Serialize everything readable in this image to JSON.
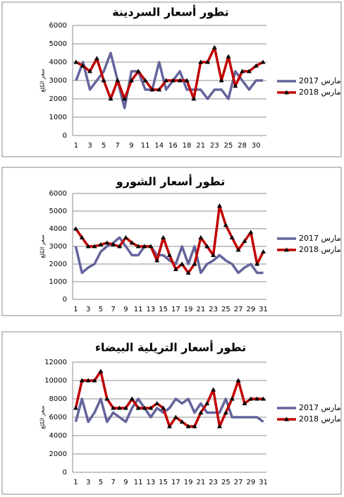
{
  "chart_data": [
    {
      "type": "line",
      "title": "تطور أسعار السردينة",
      "y_label": "سعر الكلغ",
      "categories": [
        1,
        null,
        3,
        null,
        5,
        null,
        7,
        null,
        9,
        null,
        11,
        null,
        14,
        null,
        16,
        null,
        18,
        null,
        21,
        null,
        23,
        null,
        25,
        null,
        28,
        null,
        30,
        null
      ],
      "series": [
        {
          "name": "مارس 2017",
          "color": "#64649c",
          "values": [
            3000,
            4000,
            2500,
            3000,
            3500,
            4500,
            3000,
            1500,
            3500,
            3500,
            2500,
            2500,
            4000,
            2500,
            3000,
            3500,
            2500,
            2500,
            2500,
            2000,
            2500,
            2500,
            2000,
            3500,
            3000,
            2500,
            3000,
            3000
          ]
        },
        {
          "name": "مارس 2018",
          "color": "#c00000",
          "values": [
            4000,
            3800,
            3500,
            4200,
            3000,
            2000,
            3000,
            2000,
            3000,
            3500,
            3000,
            2500,
            2500,
            3000,
            3000,
            3000,
            3000,
            2000,
            4000,
            4000,
            4800,
            3000,
            4300,
            2700,
            3500,
            3500,
            3800,
            4000
          ]
        }
      ],
      "ylim": [
        0,
        6000
      ],
      "yticks": [
        0,
        1000,
        2000,
        3000,
        4000,
        5000,
        6000
      ],
      "legend": "right"
    },
    {
      "type": "line",
      "title": "تطور أسعار الشورو",
      "y_label": "سعر الكلغ",
      "categories": [
        1,
        null,
        3,
        null,
        5,
        null,
        7,
        null,
        9,
        null,
        11,
        null,
        13,
        null,
        15,
        null,
        17,
        null,
        19,
        null,
        21,
        null,
        23,
        null,
        25,
        null,
        27,
        null,
        29,
        null,
        31
      ],
      "series": [
        {
          "name": "مارس 2017",
          "color": "#64649c",
          "values": [
            3000,
            1500,
            1800,
            2000,
            2700,
            3000,
            3200,
            3500,
            3000,
            2500,
            2500,
            3000,
            3000,
            2500,
            2500,
            2200,
            2000,
            3000,
            2000,
            3000,
            1500,
            2000,
            2200,
            2500,
            2200,
            2000,
            1500,
            1800,
            2000,
            1500,
            1500
          ]
        },
        {
          "name": "مارس 2018",
          "color": "#c00000",
          "values": [
            4000,
            3500,
            3000,
            3000,
            3100,
            3200,
            3100,
            3000,
            3500,
            3200,
            3000,
            3000,
            3000,
            2200,
            3500,
            2500,
            1700,
            2000,
            1500,
            2000,
            3500,
            3000,
            2500,
            5300,
            4200,
            3500,
            2800,
            3300,
            3800,
            2000,
            2700
          ]
        }
      ],
      "ylim": [
        0,
        6000
      ],
      "yticks": [
        0,
        1000,
        2000,
        3000,
        4000,
        5000,
        6000
      ],
      "legend": "right"
    },
    {
      "type": "line",
      "title": "تطور أسعار التريلية البيضاء",
      "y_label": "سعر الكلغ",
      "categories": [
        1,
        null,
        3,
        null,
        5,
        null,
        7,
        null,
        9,
        null,
        11,
        null,
        13,
        null,
        15,
        null,
        17,
        null,
        19,
        null,
        21,
        null,
        23,
        null,
        25,
        null,
        27,
        null,
        29,
        null,
        31
      ],
      "series": [
        {
          "name": "مارس 2017",
          "color": "#64649c",
          "values": [
            5500,
            8000,
            5500,
            6500,
            8000,
            5500,
            6500,
            6000,
            5500,
            7000,
            8000,
            7000,
            6000,
            7000,
            6500,
            7000,
            8000,
            7500,
            8000,
            6500,
            7500,
            6500,
            6500,
            6500,
            8000,
            6000,
            6000,
            6000,
            6000,
            6000,
            5500
          ]
        },
        {
          "name": "مارس 2018",
          "color": "#c00000",
          "values": [
            7000,
            10000,
            10000,
            10000,
            11000,
            8000,
            7000,
            7000,
            7000,
            8000,
            7000,
            7000,
            7000,
            7500,
            7000,
            5000,
            6000,
            5500,
            5000,
            5000,
            6500,
            7500,
            9000,
            5000,
            6500,
            8000,
            10000,
            7500,
            8000,
            8000,
            8000
          ]
        }
      ],
      "ylim": [
        0,
        12000
      ],
      "yticks": [
        0,
        2000,
        4000,
        6000,
        8000,
        10000,
        12000
      ],
      "legend": "right"
    }
  ]
}
